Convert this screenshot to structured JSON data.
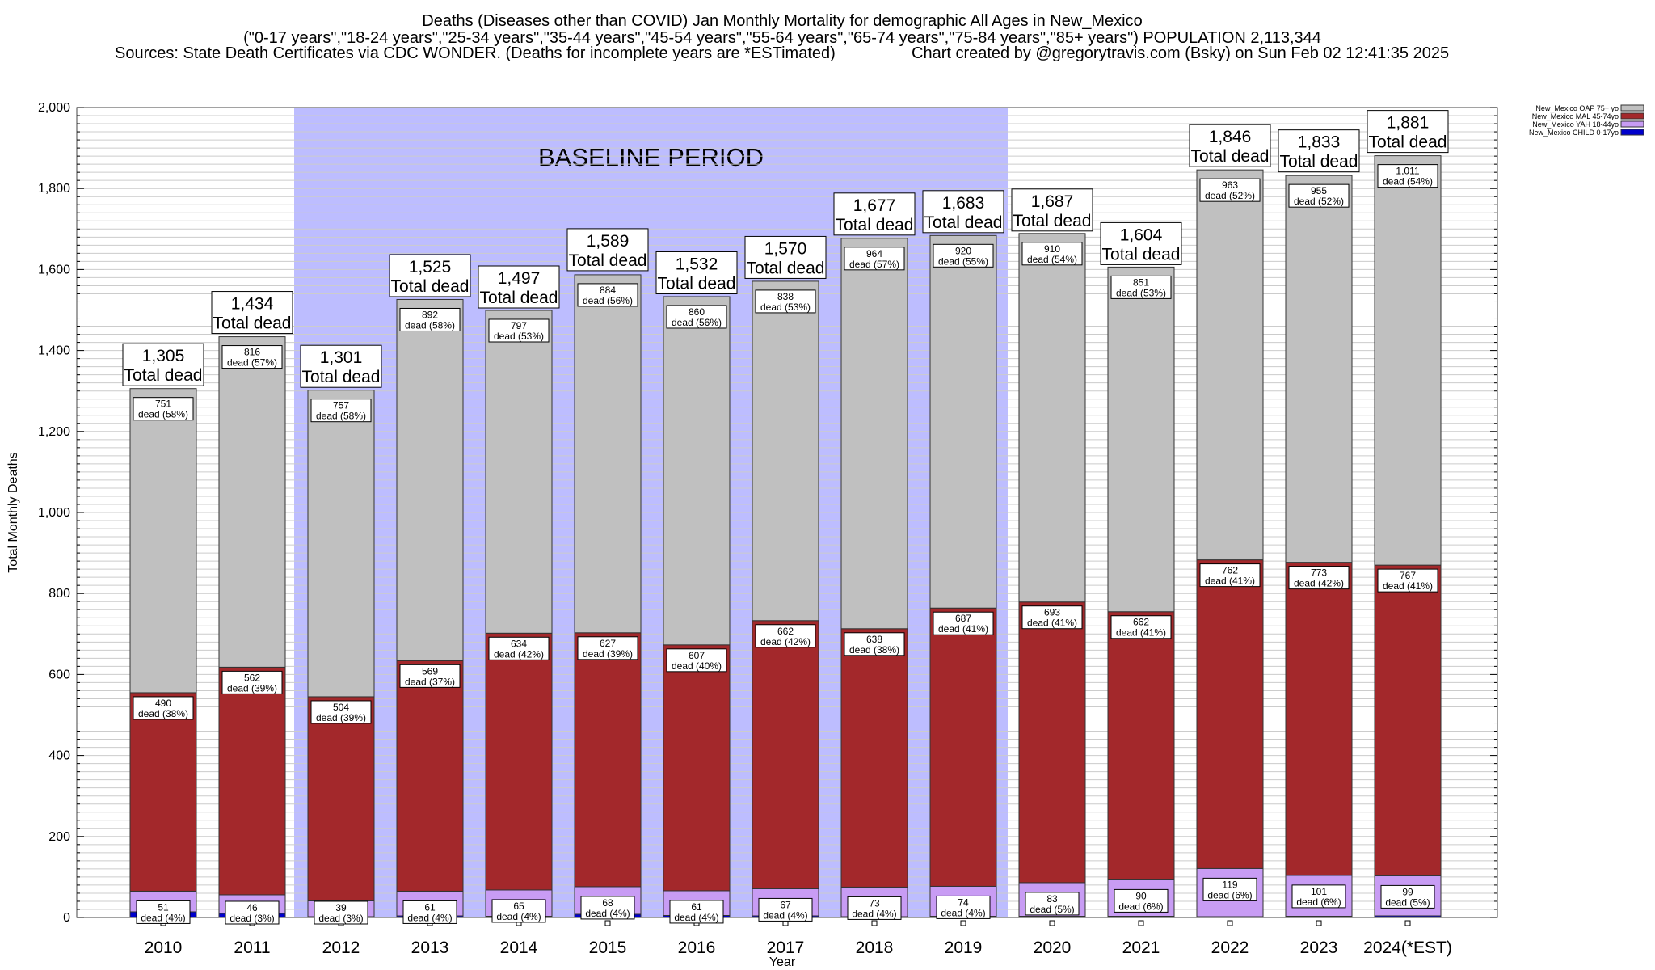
{
  "title_lines": [
    "Deaths (Diseases other than COVID) Jan Monthly Mortality for demographic All Ages in New_Mexico",
    "(\"0-17 years\",\"18-24 years\",\"25-34 years\",\"35-44 years\",\"45-54 years\",\"55-64 years\",\"65-74 years\",\"75-84 years\",\"85+ years\") POPULATION 2,113,344",
    "Sources: State Death Certificates via CDC WONDER. (Deaths for incomplete years are *ESTimated)",
    "Chart created by @gregorytravis.com (Bsky) on Sun Feb 02 12:41:35 2025"
  ],
  "chart_data": {
    "type": "bar",
    "stacked": true,
    "xlabel": "Year",
    "ylabel": "Total Monthly Deaths",
    "ylim": [
      0,
      2000
    ],
    "yticks": [
      0,
      200,
      400,
      600,
      800,
      1000,
      1200,
      1400,
      1600,
      1800,
      2000
    ],
    "ytick_labels": [
      "0",
      "200",
      "400",
      "600",
      "800",
      "1,000",
      "1,200",
      "1,400",
      "1,600",
      "1,800",
      "2,000"
    ],
    "grid": "horizontal",
    "legend_position": "top-right",
    "categories": [
      "2010",
      "2011",
      "2012",
      "2013",
      "2014",
      "2015",
      "2016",
      "2017",
      "2018",
      "2019",
      "2020",
      "2021",
      "2022",
      "2023",
      "2024(*EST)"
    ],
    "series": [
      {
        "name": "New_Mexico CHILD 0-17yo",
        "color": "#0000cc",
        "values": [
          14,
          10,
          2,
          4,
          3,
          8,
          5,
          4,
          2,
          3,
          3,
          3,
          2,
          3,
          4
        ]
      },
      {
        "name": "New_Mexico YAH 18-44yo",
        "color": "#c89cf4",
        "values": [
          51,
          46,
          39,
          61,
          65,
          68,
          61,
          67,
          73,
          74,
          83,
          90,
          119,
          101,
          99
        ],
        "pct_labels": [
          "4%",
          "3%",
          "3%",
          "4%",
          "4%",
          "4%",
          "4%",
          "4%",
          "4%",
          "4%",
          "5%",
          "6%",
          "6%",
          "6%",
          "5%"
        ]
      },
      {
        "name": "New_Mexico MAL 45-74yo",
        "color": "#a3282b",
        "values": [
          490,
          562,
          504,
          569,
          634,
          627,
          607,
          662,
          638,
          687,
          693,
          662,
          762,
          773,
          767
        ],
        "pct_labels": [
          "38%",
          "39%",
          "39%",
          "37%",
          "42%",
          "39%",
          "40%",
          "42%",
          "38%",
          "41%",
          "41%",
          "41%",
          "41%",
          "42%",
          "41%"
        ]
      },
      {
        "name": "New_Mexico OAP 75+ yo",
        "color": "#c0c0c0",
        "values": [
          751,
          816,
          757,
          892,
          797,
          884,
          860,
          838,
          964,
          920,
          910,
          851,
          963,
          955,
          1011
        ],
        "pct_labels": [
          "58%",
          "57%",
          "58%",
          "58%",
          "53%",
          "56%",
          "56%",
          "53%",
          "57%",
          "55%",
          "54%",
          "53%",
          "52%",
          "52%",
          "54%"
        ]
      }
    ],
    "totals": [
      1305,
      1434,
      1301,
      1525,
      1497,
      1589,
      1532,
      1570,
      1677,
      1683,
      1687,
      1604,
      1846,
      1833,
      1881
    ],
    "total_suffix": "Total dead",
    "dead_word": "dead",
    "annotations": [
      {
        "text": "BASELINE PERIOD",
        "from_category": "2012",
        "to_category": "2019",
        "color": "#bdbdff"
      }
    ]
  }
}
